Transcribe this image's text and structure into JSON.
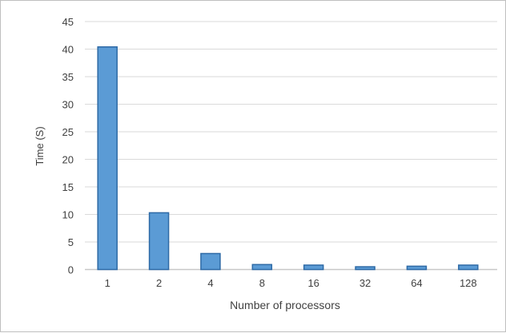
{
  "chart_data": {
    "type": "bar",
    "title": "",
    "xlabel": "Number of processors",
    "ylabel": "Time (S)",
    "categories": [
      "1",
      "2",
      "4",
      "8",
      "16",
      "32",
      "64",
      "128"
    ],
    "values": [
      40.4,
      10.3,
      2.9,
      0.9,
      0.8,
      0.5,
      0.6,
      0.8
    ],
    "ylim": [
      0,
      45
    ],
    "yticks": [
      "0",
      "5",
      "10",
      "15",
      "20",
      "25",
      "30",
      "35",
      "40",
      "45"
    ],
    "grid": true,
    "legend": "none",
    "bar_color": "#5b9bd5",
    "bar_edge_color": "#2e6aa6"
  }
}
